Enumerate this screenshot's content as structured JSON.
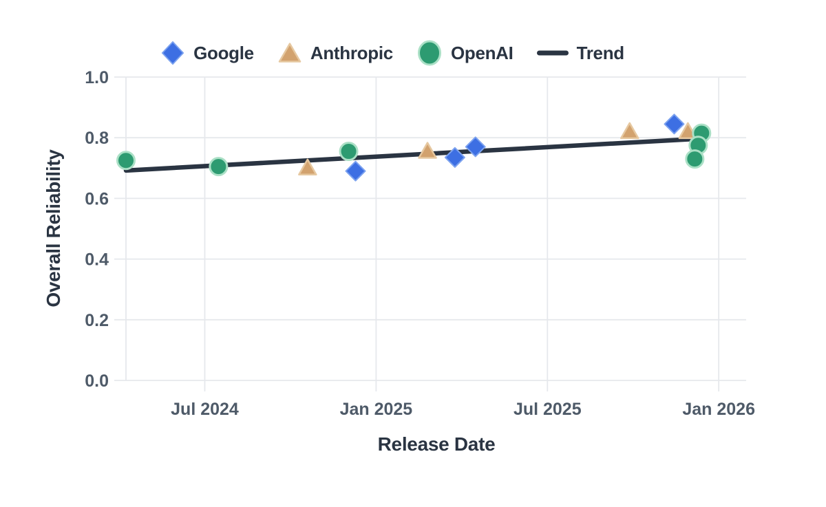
{
  "chart_data": {
    "type": "scatter",
    "title": "",
    "xlabel": "Release Date",
    "ylabel": "Overall Reliability",
    "grid": true,
    "legend_position": "top",
    "x_axis": {
      "unit": "decimal_year",
      "range": [
        2024.27,
        2026.08
      ],
      "ticks": [
        {
          "x": 2024.5,
          "label": "Jul 2024"
        },
        {
          "x": 2025.0,
          "label": "Jan 2025"
        },
        {
          "x": 2025.5,
          "label": "Jul 2025"
        },
        {
          "x": 2026.0,
          "label": "Jan 2026"
        }
      ]
    },
    "y_axis": {
      "range": [
        0.0,
        1.0
      ],
      "ticks": [
        {
          "v": 0.0,
          "label": "0.0"
        },
        {
          "v": 0.2,
          "label": "0.2"
        },
        {
          "v": 0.4,
          "label": "0.4"
        },
        {
          "v": 0.6,
          "label": "0.6"
        },
        {
          "v": 0.8,
          "label": "0.8"
        },
        {
          "v": 1.0,
          "label": "1.0"
        }
      ]
    },
    "series": [
      {
        "name": "Google",
        "marker": "diamond",
        "color": "#3d6fe3",
        "stroke": "#7ca2ef",
        "points": [
          [
            2024.94,
            0.69
          ],
          [
            2025.23,
            0.735
          ],
          [
            2025.29,
            0.77
          ],
          [
            2025.87,
            0.845
          ]
        ]
      },
      {
        "name": "Anthropic",
        "marker": "triangle",
        "color": "#d2a26e",
        "stroke": "#e6c8a0",
        "points": [
          [
            2024.8,
            0.7
          ],
          [
            2025.15,
            0.755
          ],
          [
            2025.74,
            0.82
          ],
          [
            2025.91,
            0.82
          ]
        ]
      },
      {
        "name": "OpenAI",
        "marker": "circle",
        "color": "#2d9b71",
        "stroke": "#abe0c6",
        "points": [
          [
            2024.27,
            0.725
          ],
          [
            2024.54,
            0.705
          ],
          [
            2024.92,
            0.755
          ],
          [
            2025.95,
            0.815
          ],
          [
            2025.94,
            0.775
          ],
          [
            2025.93,
            0.73
          ]
        ]
      }
    ],
    "trend": {
      "name": "Trend",
      "color": "#2a3442",
      "from": [
        2024.27,
        0.692
      ],
      "to": [
        2025.95,
        0.797
      ]
    }
  }
}
